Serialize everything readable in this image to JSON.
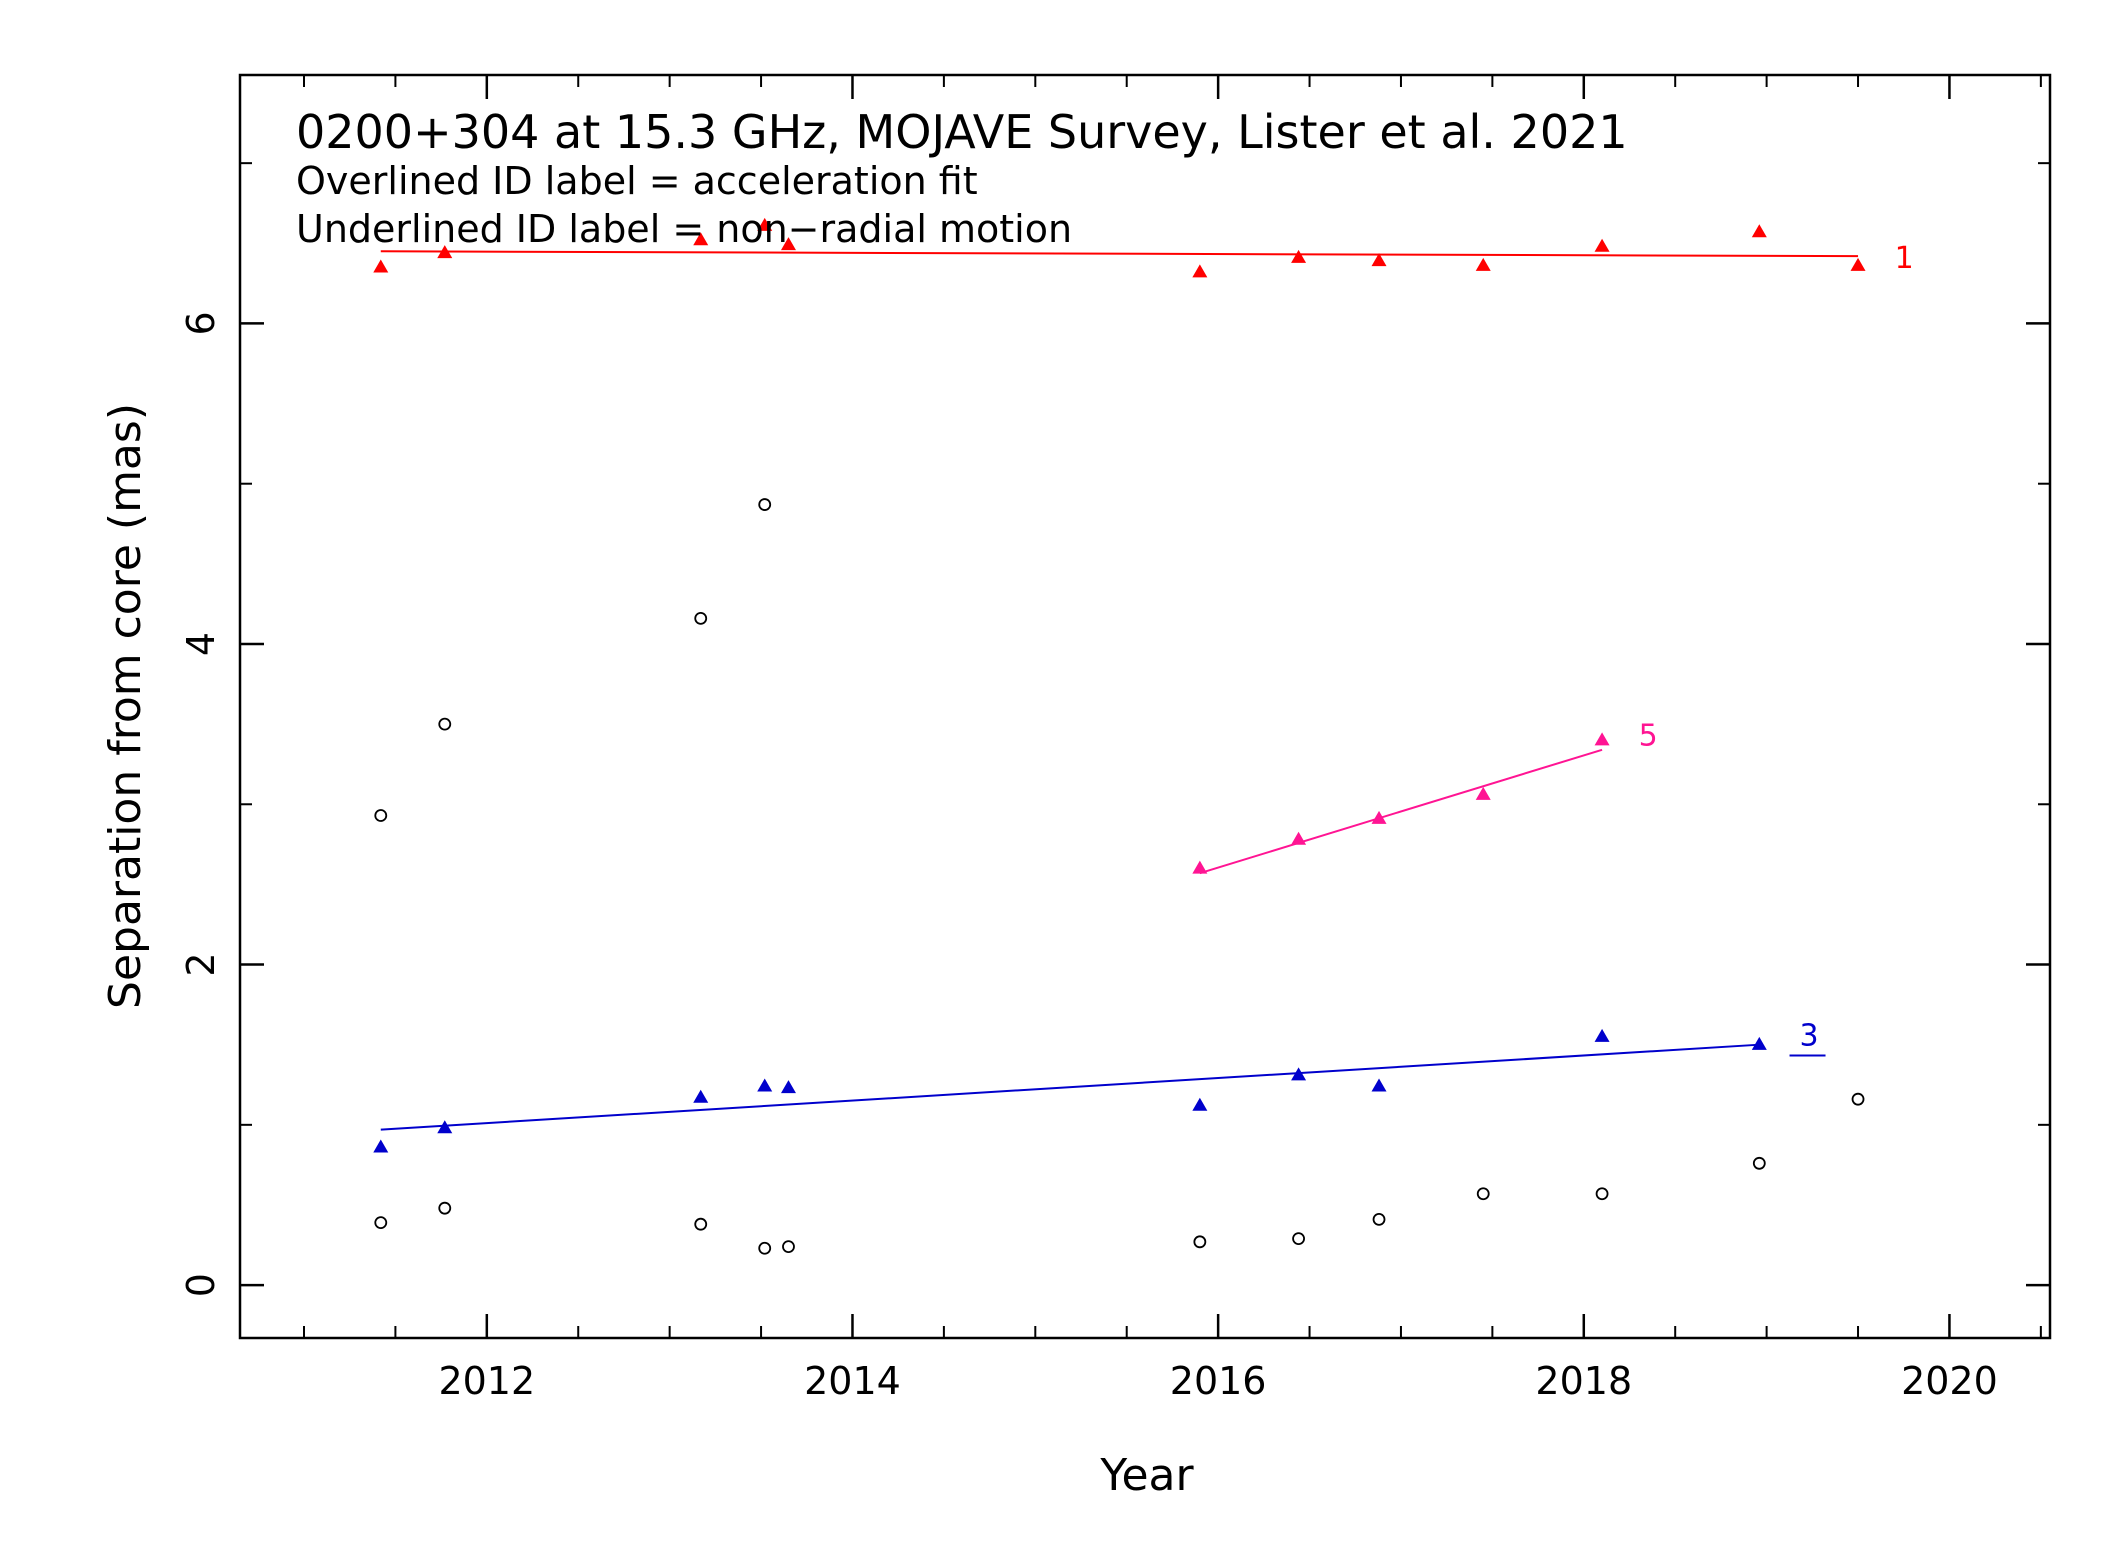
{
  "chart_data": {
    "type": "scatter",
    "title": "0200+304 at 15.3 GHz, MOJAVE Survey, Lister et al. 2021",
    "subtitles": [
      "Overlined ID label = acceleration fit",
      "Underlined ID label = non−radial motion"
    ],
    "xlabel": "Year",
    "ylabel": "Separation from core (mas)",
    "xlim": [
      2010.65,
      2020.55
    ],
    "ylim": [
      -0.33,
      7.55
    ],
    "x_ticks": [
      "2012",
      "2014",
      "2016",
      "2018",
      "2020"
    ],
    "y_ticks": [
      "0",
      "2",
      "4",
      "6"
    ],
    "x_tick_values": [
      2012,
      2014,
      2016,
      2018,
      2020
    ],
    "y_tick_values": [
      0,
      2,
      4,
      6
    ],
    "x_minor_step": 0.5,
    "y_minor_step": 1,
    "grid": false,
    "series": [
      {
        "label": "1",
        "color": "#ff0000",
        "marker": "triangle",
        "x": [
          2011.42,
          2011.77,
          2013.17,
          2013.52,
          2013.65,
          2015.9,
          2016.44,
          2016.88,
          2017.45,
          2018.1,
          2018.96,
          2019.5
        ],
        "y": [
          6.35,
          6.44,
          6.52,
          6.61,
          6.49,
          6.32,
          6.41,
          6.39,
          6.36,
          6.48,
          6.57,
          6.36
        ],
        "fit": {
          "x": [
            2011.42,
            2019.5
          ],
          "y": [
            6.45,
            6.42
          ]
        },
        "id_label": {
          "x": 2019.7,
          "y": 6.42,
          "underline": false
        }
      },
      {
        "label": "5",
        "color": "#ff1493",
        "marker": "triangle",
        "x": [
          2015.9,
          2016.44,
          2016.88,
          2017.45,
          2018.1
        ],
        "y": [
          2.6,
          2.78,
          2.91,
          3.06,
          3.4
        ],
        "fit": {
          "x": [
            2015.9,
            2018.1
          ],
          "y": [
            2.57,
            3.34
          ]
        },
        "id_label": {
          "x": 2018.3,
          "y": 3.44,
          "underline": false
        }
      },
      {
        "label": "3",
        "color": "#0000cc",
        "marker": "triangle",
        "x": [
          2011.42,
          2011.77,
          2013.17,
          2013.52,
          2013.65,
          2015.9,
          2016.44,
          2016.88,
          2018.1,
          2018.96
        ],
        "y": [
          0.86,
          0.98,
          1.17,
          1.24,
          1.23,
          1.12,
          1.31,
          1.24,
          1.55,
          1.5
        ],
        "fit": {
          "x": [
            2011.42,
            2018.96
          ],
          "y": [
            0.97,
            1.5
          ]
        },
        "id_label": {
          "x": 2019.18,
          "y": 1.57,
          "underline": true
        }
      },
      {
        "label": "",
        "color": "#000000",
        "marker": "circle",
        "x": [
          2011.42,
          2011.77,
          2013.17,
          2013.52,
          2011.42,
          2011.77,
          2013.17,
          2013.52,
          2013.65,
          2015.9,
          2016.44,
          2016.88,
          2017.45,
          2018.1,
          2018.96,
          2019.5
        ],
        "y": [
          2.93,
          3.5,
          4.16,
          4.87,
          0.39,
          0.48,
          0.38,
          0.23,
          0.24,
          0.27,
          0.29,
          0.41,
          0.57,
          0.57,
          0.76,
          1.16
        ]
      }
    ]
  }
}
